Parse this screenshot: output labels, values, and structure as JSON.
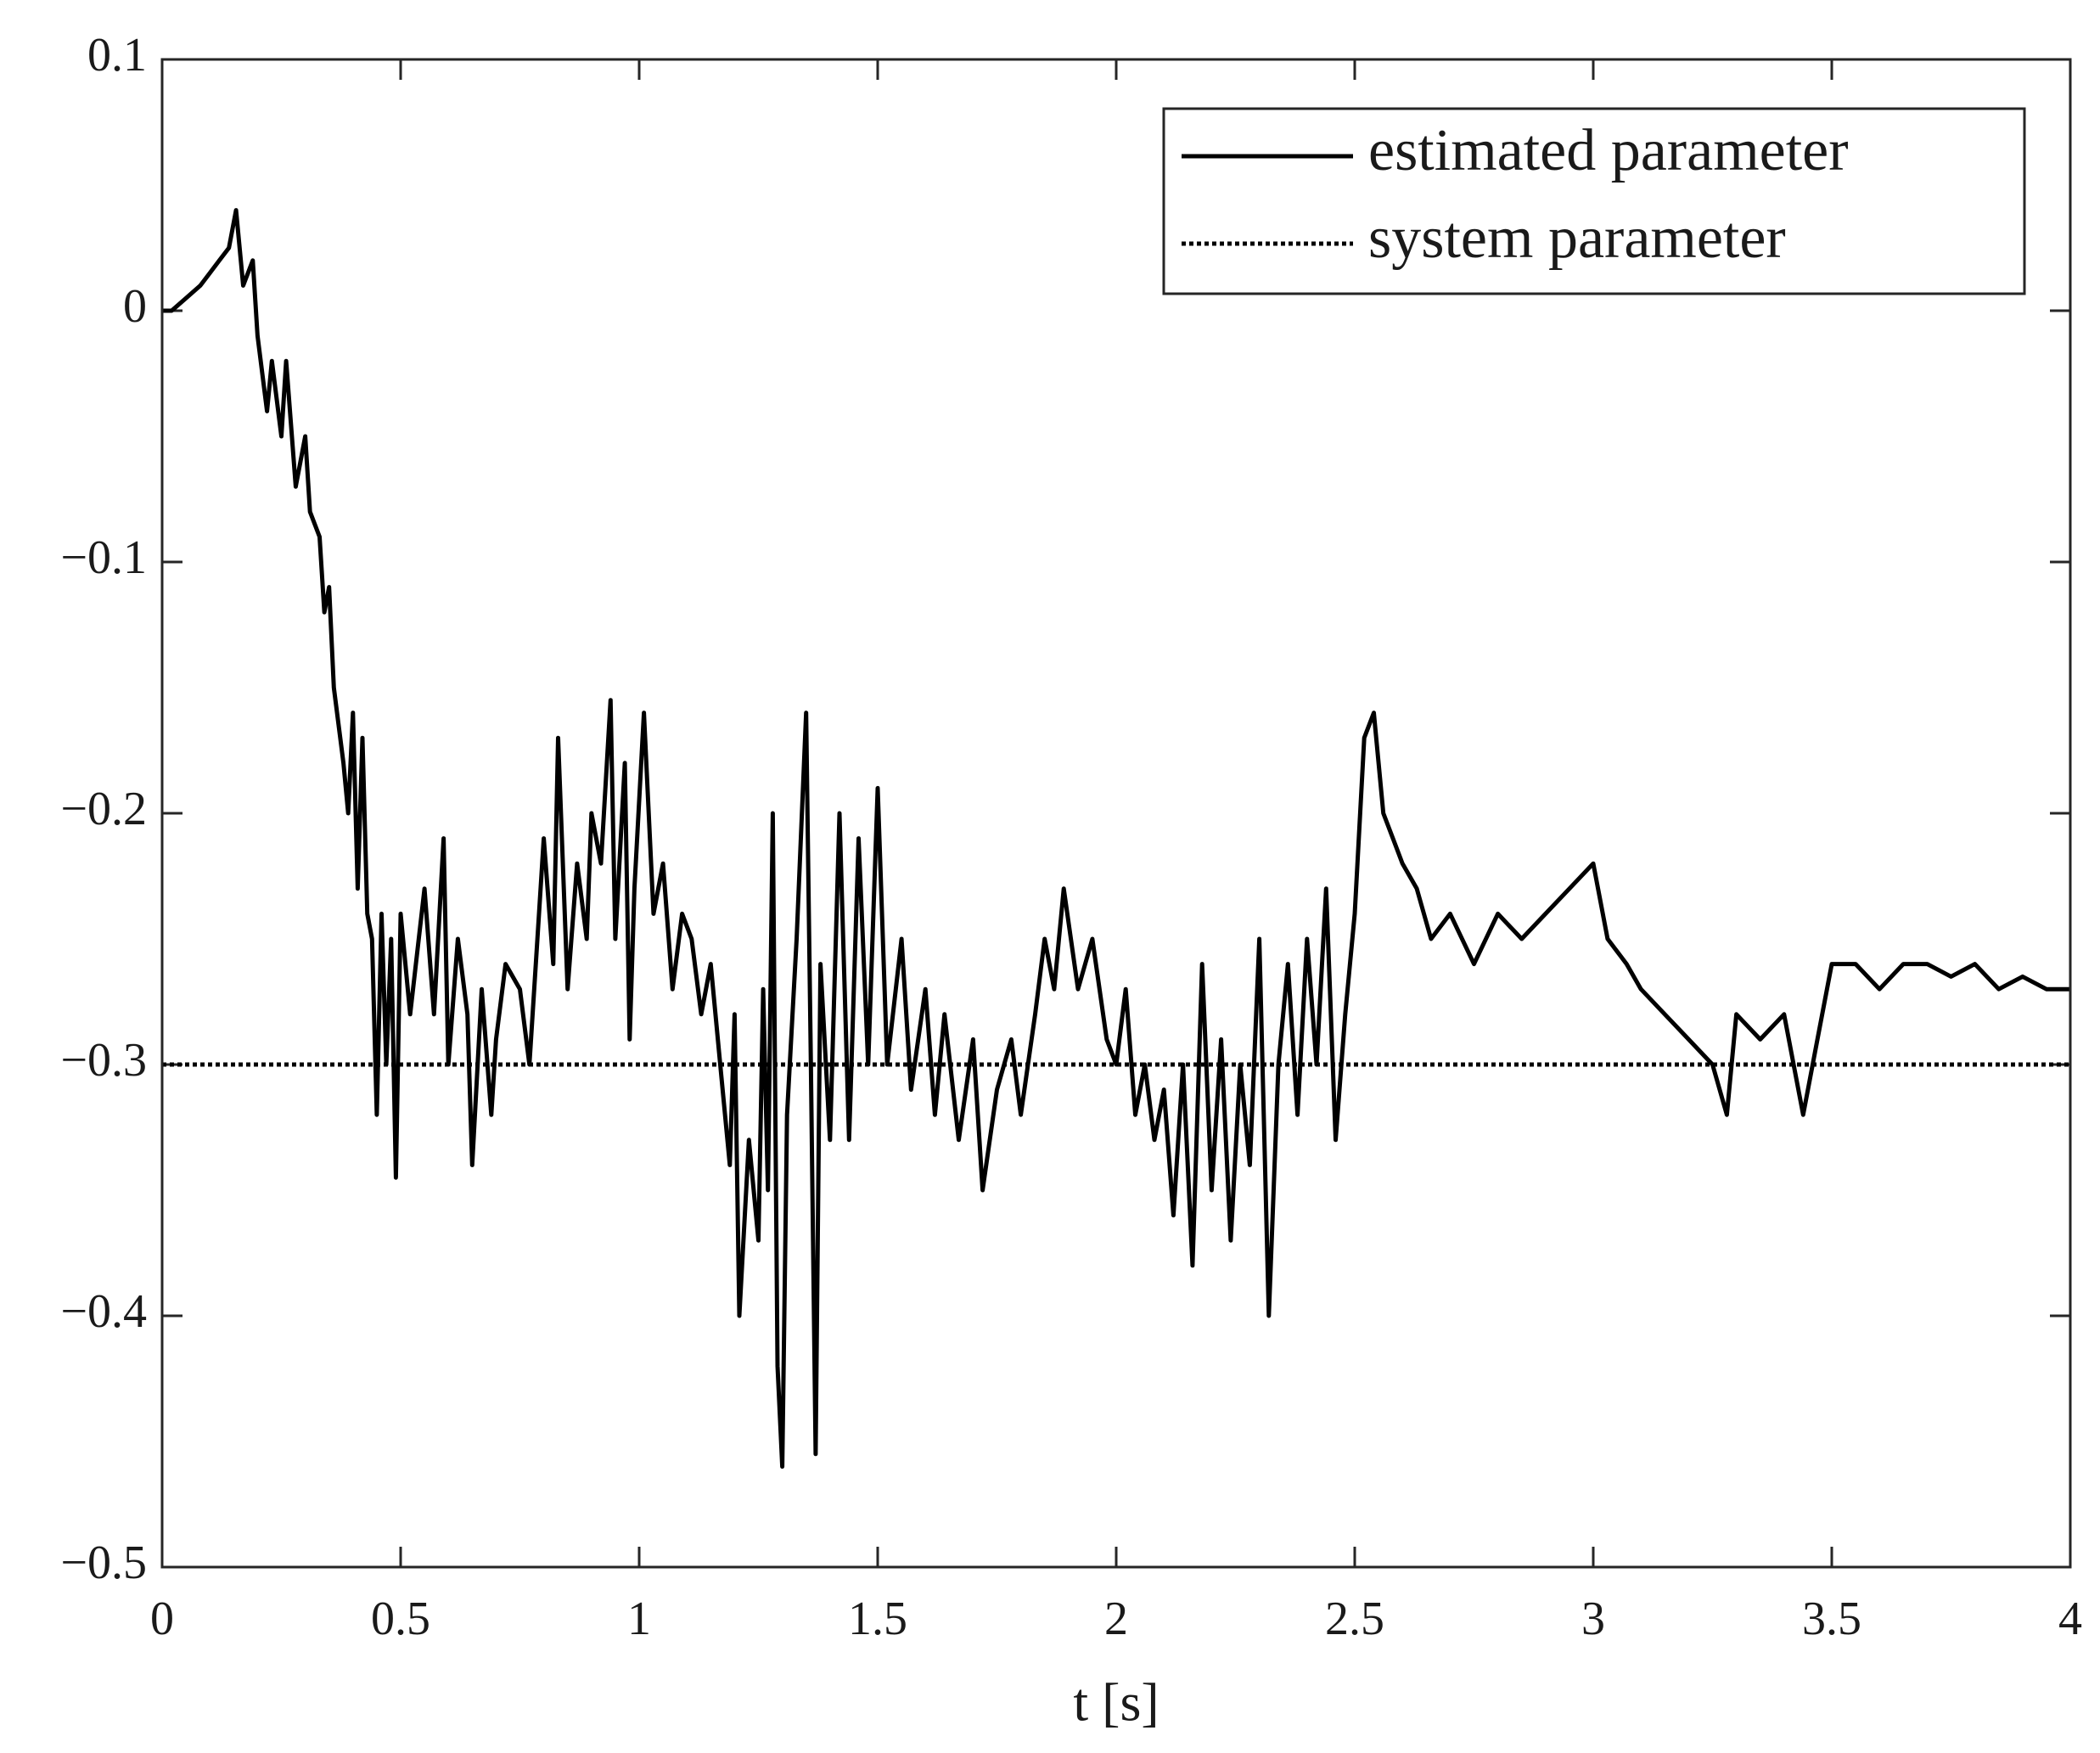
{
  "chart_data": {
    "type": "line",
    "xlabel": "t [s]",
    "xlim": [
      0,
      4
    ],
    "xticks": [
      0,
      0.5,
      1,
      1.5,
      2,
      2.5,
      3,
      3.5,
      4
    ],
    "ylim": [
      -0.5,
      0.1
    ],
    "yticks": [
      {
        "value": -0.5,
        "label": "−0.5"
      },
      {
        "value": -0.4,
        "label": "−0.4"
      },
      {
        "value": -0.3,
        "label": "−0.3"
      },
      {
        "value": -0.2,
        "label": "−0.2"
      },
      {
        "value": -0.1,
        "label": "−0.1"
      },
      0,
      0.1
    ],
    "grid": false,
    "legend": "northeast",
    "series": [
      {
        "name": "estimated parameter",
        "color": "#000000",
        "linestyle": "solid",
        "x": [
          0,
          0.02,
          0.05,
          0.08,
          0.1,
          0.12,
          0.14,
          0.155,
          0.17,
          0.19,
          0.2,
          0.22,
          0.23,
          0.25,
          0.26,
          0.28,
          0.3,
          0.31,
          0.33,
          0.34,
          0.35,
          0.36,
          0.38,
          0.39,
          0.4,
          0.41,
          0.42,
          0.43,
          0.44,
          0.45,
          0.46,
          0.47,
          0.48,
          0.49,
          0.5,
          0.52,
          0.55,
          0.57,
          0.59,
          0.6,
          0.62,
          0.64,
          0.65,
          0.67,
          0.69,
          0.7,
          0.72,
          0.75,
          0.77,
          0.79,
          0.8,
          0.82,
          0.83,
          0.85,
          0.87,
          0.89,
          0.9,
          0.92,
          0.94,
          0.95,
          0.97,
          0.98,
          0.99,
          1.01,
          1.03,
          1.05,
          1.07,
          1.09,
          1.11,
          1.13,
          1.15,
          1.17,
          1.19,
          1.2,
          1.21,
          1.23,
          1.25,
          1.26,
          1.27,
          1.28,
          1.29,
          1.3,
          1.31,
          1.33,
          1.35,
          1.36,
          1.37,
          1.38,
          1.4,
          1.42,
          1.44,
          1.46,
          1.48,
          1.5,
          1.52,
          1.55,
          1.57,
          1.6,
          1.62,
          1.64,
          1.67,
          1.7,
          1.72,
          1.75,
          1.78,
          1.8,
          1.83,
          1.85,
          1.87,
          1.89,
          1.92,
          1.95,
          1.98,
          2.0,
          2.02,
          2.04,
          2.06,
          2.08,
          2.1,
          2.12,
          2.14,
          2.16,
          2.18,
          2.2,
          2.22,
          2.24,
          2.26,
          2.28,
          2.3,
          2.32,
          2.34,
          2.36,
          2.38,
          2.4,
          2.42,
          2.44,
          2.46,
          2.48,
          2.5,
          2.52,
          2.54,
          2.56,
          2.58,
          2.6,
          2.63,
          2.66,
          2.7,
          2.75,
          2.8,
          2.85,
          2.9,
          2.95,
          3.0,
          3.03,
          3.07,
          3.1,
          3.15,
          3.2,
          3.25,
          3.28,
          3.3,
          3.35,
          3.4,
          3.44,
          3.47,
          3.5,
          3.55,
          3.6,
          3.65,
          3.7,
          3.75,
          3.8,
          3.85,
          3.9,
          3.95,
          4.0
        ],
        "values": [
          0,
          0,
          0.005,
          0.01,
          0.015,
          0.02,
          0.025,
          0.04,
          0.01,
          0.02,
          -0.01,
          -0.04,
          -0.02,
          -0.05,
          -0.02,
          -0.07,
          -0.05,
          -0.08,
          -0.09,
          -0.12,
          -0.11,
          -0.15,
          -0.18,
          -0.2,
          -0.16,
          -0.23,
          -0.17,
          -0.24,
          -0.25,
          -0.32,
          -0.24,
          -0.3,
          -0.25,
          -0.345,
          -0.24,
          -0.28,
          -0.23,
          -0.28,
          -0.21,
          -0.3,
          -0.25,
          -0.28,
          -0.34,
          -0.27,
          -0.32,
          -0.29,
          -0.26,
          -0.27,
          -0.3,
          -0.24,
          -0.21,
          -0.26,
          -0.17,
          -0.27,
          -0.22,
          -0.25,
          -0.2,
          -0.22,
          -0.155,
          -0.25,
          -0.18,
          -0.29,
          -0.23,
          -0.16,
          -0.24,
          -0.22,
          -0.27,
          -0.24,
          -0.25,
          -0.28,
          -0.26,
          -0.3,
          -0.34,
          -0.28,
          -0.4,
          -0.33,
          -0.37,
          -0.27,
          -0.35,
          -0.2,
          -0.42,
          -0.46,
          -0.32,
          -0.25,
          -0.16,
          -0.3,
          -0.455,
          -0.26,
          -0.33,
          -0.2,
          -0.33,
          -0.21,
          -0.3,
          -0.19,
          -0.3,
          -0.25,
          -0.31,
          -0.27,
          -0.32,
          -0.28,
          -0.33,
          -0.29,
          -0.35,
          -0.31,
          -0.29,
          -0.32,
          -0.28,
          -0.25,
          -0.27,
          -0.23,
          -0.27,
          -0.25,
          -0.29,
          -0.3,
          -0.27,
          -0.32,
          -0.3,
          -0.33,
          -0.31,
          -0.36,
          -0.3,
          -0.38,
          -0.26,
          -0.35,
          -0.29,
          -0.37,
          -0.3,
          -0.34,
          -0.25,
          -0.4,
          -0.3,
          -0.26,
          -0.32,
          -0.25,
          -0.3,
          -0.23,
          -0.33,
          -0.28,
          -0.24,
          -0.17,
          -0.16,
          -0.2,
          -0.21,
          -0.22,
          -0.23,
          -0.25,
          -0.24,
          -0.26,
          -0.24,
          -0.25,
          -0.24,
          -0.23,
          -0.22,
          -0.25,
          -0.26,
          -0.27,
          -0.28,
          -0.29,
          -0.3,
          -0.32,
          -0.28,
          -0.29,
          -0.28,
          -0.32,
          -0.29,
          -0.26,
          -0.26,
          -0.27,
          -0.26,
          -0.26,
          -0.265,
          -0.26,
          -0.27,
          -0.265,
          -0.27,
          -0.27
        ]
      },
      {
        "name": "system parameter",
        "color": "#000000",
        "linestyle": "dotted",
        "x": [
          0,
          4
        ],
        "values": [
          -0.3,
          -0.3
        ]
      }
    ]
  }
}
